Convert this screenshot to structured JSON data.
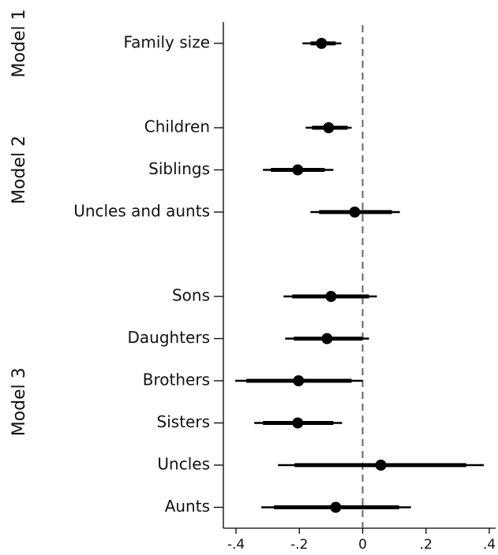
{
  "chart_data": {
    "type": "dotwhisker",
    "xlim": [
      -0.44,
      0.42
    ],
    "xticks": [
      {
        "value": -0.4,
        "label": "-.4"
      },
      {
        "value": -0.2,
        "label": "-.2"
      },
      0,
      {
        "value": 0.2,
        "label": ".2"
      },
      {
        "value": 0.4,
        "label": ".4"
      }
    ],
    "reference_line": 0,
    "groups": [
      {
        "name": "Model 1",
        "categories": [
          "Family size"
        ],
        "values": [
          -0.13
        ],
        "ci_outer_low": [
          -0.19
        ],
        "ci_outer_high": [
          -0.0675
        ],
        "ci_inner_low": [
          -0.165
        ],
        "ci_inner_high": [
          -0.085
        ]
      },
      {
        "name": "Model 2",
        "categories": [
          "Children",
          "Siblings",
          "Uncles and aunts"
        ],
        "values": [
          -0.1075,
          -0.205,
          -0.025
        ],
        "ci_outer_low": [
          -0.18,
          -0.315,
          -0.165
        ],
        "ci_outer_high": [
          -0.035,
          -0.0925,
          0.1175
        ],
        "ci_inner_low": [
          -0.16,
          -0.29,
          -0.1375
        ],
        "ci_inner_high": [
          -0.0475,
          -0.12,
          0.0925
        ]
      },
      {
        "name": "Model 3",
        "categories": [
          "Sons",
          "Daughters",
          "Brothers",
          "Sisters",
          "Uncles",
          "Aunts"
        ],
        "values": [
          -0.1,
          -0.1125,
          -0.2025,
          -0.205,
          0.0575,
          -0.085
        ],
        "ci_outer_low": [
          -0.25,
          -0.245,
          -0.4025,
          -0.3425,
          -0.2675,
          -0.32
        ],
        "ci_outer_high": [
          0.045,
          0.02,
          0,
          -0.065,
          0.3825,
          0.1525
        ],
        "ci_inner_low": [
          -0.2225,
          -0.2175,
          -0.3675,
          -0.315,
          -0.215,
          -0.28
        ],
        "ci_inner_high": [
          0.02,
          0,
          -0.035,
          -0.0925,
          0.3275,
          0.115
        ]
      }
    ]
  }
}
